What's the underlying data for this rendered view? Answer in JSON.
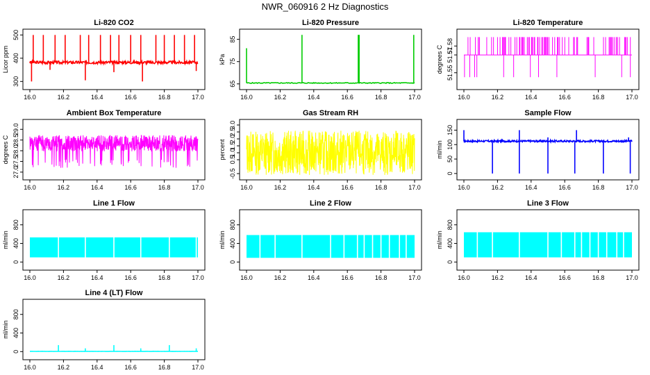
{
  "title": "NWR_060916  2 Hz Diagnostics",
  "colors": {
    "red": "#ff0000",
    "green": "#00cc00",
    "magenta": "#ff00ff",
    "yellow": "#ffff00",
    "blue": "#0000ff",
    "cyan": "#00ffff"
  },
  "chart_data": [
    {
      "id": "co2",
      "type": "line",
      "title": "Li-820 CO2",
      "ylabel": "Licor ppm",
      "color": "#ff0000",
      "xlim": [
        16.0,
        17.0
      ],
      "ylim": [
        280,
        510
      ],
      "xticks": [
        "16.0",
        "16.2",
        "16.4",
        "16.6",
        "16.8",
        "17.0"
      ],
      "yticks": [
        {
          "v": 300,
          "label": "300"
        },
        {
          "v": 400,
          "label": "400"
        },
        {
          "v": 500,
          "label": "500"
        }
      ],
      "synth": {
        "mode": "spikes",
        "base": 382,
        "noise": 6,
        "n": 360,
        "seed": 3,
        "spikes": [
          [
            16.02,
            500
          ],
          [
            16.08,
            500
          ],
          [
            16.15,
            500
          ],
          [
            16.21,
            500
          ],
          [
            16.3,
            500
          ],
          [
            16.35,
            500
          ],
          [
            16.42,
            500
          ],
          [
            16.48,
            500
          ],
          [
            16.53,
            500
          ],
          [
            16.6,
            500
          ],
          [
            16.66,
            500
          ],
          [
            16.75,
            500
          ],
          [
            16.8,
            500
          ],
          [
            16.86,
            500
          ],
          [
            16.92,
            500
          ],
          [
            16.98,
            500
          ],
          [
            16.01,
            300
          ],
          [
            16.33,
            305
          ],
          [
            16.67,
            300
          ],
          [
            16.5,
            340
          ],
          [
            16.12,
            350
          ],
          [
            16.99,
            345
          ]
        ]
      }
    },
    {
      "id": "pressure",
      "type": "line",
      "title": "Li-820 Pressure",
      "ylabel": "kPa",
      "color": "#00cc00",
      "xlim": [
        16.0,
        17.0
      ],
      "ylim": [
        64,
        88
      ],
      "xticks": [
        "16.0",
        "16.2",
        "16.4",
        "16.6",
        "16.8",
        "17.0"
      ],
      "yticks": [
        {
          "v": 65,
          "label": "65"
        },
        {
          "v": 75,
          "label": "75"
        },
        {
          "v": 85,
          "label": "85"
        }
      ],
      "synth": {
        "mode": "spikes",
        "base": 65.4,
        "noise": 0.2,
        "n": 200,
        "seed": 5,
        "spikes": [
          [
            16.0,
            81
          ],
          [
            16.33,
            87
          ],
          [
            16.665,
            87
          ],
          [
            16.67,
            87
          ],
          [
            16.995,
            87
          ]
        ]
      }
    },
    {
      "id": "licor-temp",
      "type": "line",
      "title": "Li-820 Temperature",
      "ylabel": "degrees C",
      "color": "#ff00ff",
      "xlim": [
        16.0,
        17.0
      ],
      "ylim": [
        51.535,
        51.595
      ],
      "xticks": [
        "16.0",
        "16.2",
        "16.4",
        "16.6",
        "16.8",
        "17.0"
      ],
      "yticks": [
        {
          "v": 51.55,
          "label": "51.55"
        },
        {
          "v": 51.57,
          "label": "51.57"
        },
        {
          "v": 51.58,
          "label": "51.58"
        }
      ],
      "synth": {
        "mode": "levels",
        "base": 51.57,
        "n": 140,
        "seed": 7,
        "hi": 51.59,
        "lo": 51.545,
        "upDensity": 0.35,
        "downDensity": 0.12
      }
    },
    {
      "id": "box-temp",
      "type": "line",
      "title": "Ambient Box Temperature",
      "ylabel": "degrees C",
      "color": "#ff00ff",
      "xlim": [
        16.0,
        17.0
      ],
      "ylim": [
        26.8,
        29.3
      ],
      "xticks": [
        "16.0",
        "16.2",
        "16.4",
        "16.6",
        "16.8",
        "17.0"
      ],
      "yticks": [
        {
          "v": 27.0,
          "label": "27.0"
        },
        {
          "v": 27.5,
          "label": "27.5"
        },
        {
          "v": 28.0,
          "label": "28.0"
        },
        {
          "v": 28.5,
          "label": "28.5"
        },
        {
          "v": 29.0,
          "label": "29.0"
        }
      ],
      "synth": {
        "mode": "band",
        "center": 28.35,
        "half": 0.38,
        "n": 700,
        "seed": 11,
        "lowSpikes": 0.08,
        "lowTo": 27.4
      }
    },
    {
      "id": "gas-rh",
      "type": "line",
      "title": "Gas Stream RH",
      "ylabel": "percent",
      "color": "#ffff00",
      "xlim": [
        16.0,
        17.0
      ],
      "ylim": [
        -0.7,
        3.15
      ],
      "xticks": [
        "16.0",
        "16.2",
        "16.4",
        "16.6",
        "16.8",
        "17.0"
      ],
      "yticks": [
        {
          "v": -0.5,
          "label": "-0.5"
        },
        {
          "v": 0.5,
          "label": "0.5"
        },
        {
          "v": 1.0,
          "label": "1.0"
        },
        {
          "v": 1.5,
          "label": "1.5"
        },
        {
          "v": 2.0,
          "label": "2.0"
        },
        {
          "v": 2.5,
          "label": "2.5"
        },
        {
          "v": 3.0,
          "label": "3.0"
        }
      ],
      "synth": {
        "mode": "band",
        "center": 1.0,
        "half": 1.6,
        "n": 700,
        "seed": 13,
        "lowSpikes": 0,
        "lowTo": 0
      }
    },
    {
      "id": "sample-flow",
      "type": "line",
      "title": "Sample Flow",
      "ylabel": "ml/min",
      "color": "#0000ff",
      "xlim": [
        16.0,
        17.0
      ],
      "ylim": [
        -10,
        175
      ],
      "xticks": [
        "16.0",
        "16.2",
        "16.4",
        "16.6",
        "16.8",
        "17.0"
      ],
      "yticks": [
        {
          "v": 0,
          "label": "0"
        },
        {
          "v": 50,
          "label": "50"
        },
        {
          "v": 100,
          "label": "100"
        },
        {
          "v": 150,
          "label": "150"
        }
      ],
      "synth": {
        "mode": "spikes",
        "base": 112,
        "noise": 3,
        "n": 400,
        "seed": 17,
        "spikes": [
          [
            16.0,
            150
          ],
          [
            16.17,
            0
          ],
          [
            16.33,
            0
          ],
          [
            16.33,
            150
          ],
          [
            16.5,
            0
          ],
          [
            16.5,
            125
          ],
          [
            16.66,
            0
          ],
          [
            16.67,
            150
          ],
          [
            16.83,
            0
          ],
          [
            16.99,
            0
          ],
          [
            16.98,
            125
          ]
        ]
      }
    },
    {
      "id": "line1",
      "type": "line",
      "title": "Line 1 Flow",
      "ylabel": "ml/min",
      "color": "#00ffff",
      "xlim": [
        16.0,
        17.0
      ],
      "ylim": [
        -100,
        1050
      ],
      "xticks": [
        "16.0",
        "16.2",
        "16.4",
        "16.6",
        "16.8",
        "17.0"
      ],
      "yticks": [
        {
          "v": 0,
          "label": "0"
        },
        {
          "v": 400,
          "label": "400"
        },
        {
          "v": 800,
          "label": "800"
        }
      ],
      "synth": {
        "mode": "block",
        "lo": 100,
        "hi": 530,
        "gaps": [
          16.17,
          16.33,
          16.5,
          16.66,
          16.83,
          16.99
        ],
        "start": 16.0,
        "end": 17.0
      }
    },
    {
      "id": "line2",
      "type": "line",
      "title": "Line 2 Flow",
      "ylabel": "ml/min",
      "color": "#00ffff",
      "xlim": [
        16.0,
        17.0
      ],
      "ylim": [
        -100,
        1050
      ],
      "xticks": [
        "16.0",
        "16.2",
        "16.4",
        "16.6",
        "16.8",
        "17.0"
      ],
      "yticks": [
        {
          "v": 0,
          "label": "0"
        },
        {
          "v": 400,
          "label": "400"
        },
        {
          "v": 800,
          "label": "800"
        }
      ],
      "synth": {
        "mode": "block",
        "lo": 90,
        "hi": 580,
        "gaps": [
          16.08,
          16.17,
          16.33,
          16.5,
          16.58,
          16.66,
          16.7,
          16.75,
          16.8,
          16.85,
          16.91,
          16.95
        ],
        "start": 16.0,
        "end": 17.0
      }
    },
    {
      "id": "line3",
      "type": "line",
      "title": "Line 3 Flow",
      "ylabel": "ml/min",
      "color": "#00ffff",
      "xlim": [
        16.0,
        17.0
      ],
      "ylim": [
        -100,
        1050
      ],
      "xticks": [
        "16.0",
        "16.2",
        "16.4",
        "16.6",
        "16.8",
        "17.0"
      ],
      "yticks": [
        {
          "v": 0,
          "label": "0"
        },
        {
          "v": 400,
          "label": "400"
        },
        {
          "v": 800,
          "label": "800"
        }
      ],
      "synth": {
        "mode": "block",
        "lo": 100,
        "hi": 640,
        "gaps": [
          16.08,
          16.17,
          16.33,
          16.5,
          16.58,
          16.66,
          16.7,
          16.75,
          16.8,
          16.85,
          16.91,
          16.95
        ],
        "start": 16.0,
        "end": 17.0
      }
    },
    {
      "id": "line4",
      "type": "line",
      "title": "Line 4 (LT) Flow",
      "ylabel": "ml/min",
      "color": "#00ffff",
      "xlim": [
        16.0,
        17.0
      ],
      "ylim": [
        -100,
        1050
      ],
      "xticks": [
        "16.0",
        "16.2",
        "16.4",
        "16.6",
        "16.8",
        "17.0"
      ],
      "yticks": [
        {
          "v": 0,
          "label": "0"
        },
        {
          "v": 400,
          "label": "400"
        },
        {
          "v": 800,
          "label": "800"
        }
      ],
      "synth": {
        "mode": "spikes",
        "base": 5,
        "noise": 2,
        "n": 200,
        "seed": 19,
        "spikes": [
          [
            16.17,
            140
          ],
          [
            16.33,
            70
          ],
          [
            16.5,
            140
          ],
          [
            16.66,
            70
          ],
          [
            16.83,
            140
          ],
          [
            16.99,
            70
          ]
        ]
      }
    }
  ]
}
